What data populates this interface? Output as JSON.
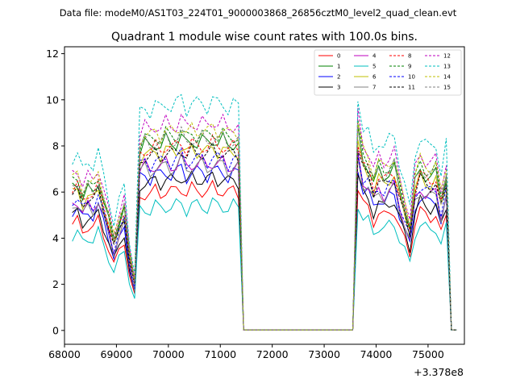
{
  "header": {
    "suptitle": "Data file: modeM0/AS1T03_224T01_9000003868_26856cztM0_level2_quad_clean.evt"
  },
  "chart_data": {
    "type": "line",
    "title": "Quadrant 1 module wise count rates with 100.0s bins.",
    "xlabel": "",
    "ylabel": "",
    "x_offset_label": "+3.378e8",
    "xlim": [
      68000,
      75700
    ],
    "ylim": [
      -0.6,
      12.3
    ],
    "xticks": [
      "68000",
      "69000",
      "70000",
      "71000",
      "72000",
      "73000",
      "74000",
      "75000"
    ],
    "yticks": [
      "0",
      "2",
      "4",
      "6",
      "8",
      "10",
      "12"
    ],
    "legend_placement": "top-right",
    "x": [
      68150,
      68250,
      68350,
      68450,
      68550,
      68650,
      68750,
      68850,
      68950,
      69050,
      69150,
      69250,
      69350,
      69450,
      69550,
      69650,
      69750,
      69850,
      69950,
      70050,
      70150,
      70250,
      70350,
      70450,
      70550,
      70650,
      70750,
      70850,
      70950,
      71050,
      71150,
      71250,
      71350,
      71450,
      71550,
      71650,
      71750,
      71850,
      71950,
      72050,
      72150,
      72250,
      72350,
      72450,
      72550,
      72650,
      72750,
      72850,
      72950,
      73050,
      73150,
      73250,
      73350,
      73450,
      73550,
      73650,
      73750,
      73850,
      73950,
      74050,
      74150,
      74250,
      74350,
      74450,
      74550,
      74650,
      74750,
      74850,
      74950,
      75050,
      75150,
      75250,
      75350,
      75450,
      75550
    ],
    "base_profile": [
      0.73,
      0.75,
      0.68,
      0.72,
      0.7,
      0.76,
      0.66,
      0.56,
      0.45,
      0.55,
      0.62,
      0.38,
      0.24,
      0.92,
      0.95,
      0.93,
      0.96,
      0.94,
      0.97,
      0.95,
      0.96,
      0.99,
      0.94,
      0.97,
      0.96,
      0.97,
      0.95,
      0.98,
      0.96,
      0.97,
      0.94,
      0.96,
      0.95,
      0.0,
      0.0,
      0.0,
      0.0,
      0.0,
      0.0,
      0.0,
      0.0,
      0.0,
      0.0,
      0.0,
      0.0,
      0.0,
      0.0,
      0.0,
      0.0,
      0.0,
      0.0,
      0.0,
      0.0,
      0.0,
      0.0,
      1.0,
      0.86,
      0.84,
      0.75,
      0.81,
      0.78,
      0.81,
      0.83,
      0.71,
      0.62,
      0.52,
      0.75,
      0.82,
      0.79,
      0.78,
      0.8,
      0.66,
      0.79,
      0.0,
      0.0
    ],
    "series": [
      {
        "name": "0",
        "color": "#ff0000",
        "dash": "solid",
        "level": 6.3
      },
      {
        "name": "1",
        "color": "#008000",
        "dash": "solid",
        "level": 8.5
      },
      {
        "name": "2",
        "color": "#0000ff",
        "dash": "solid",
        "level": 7.1
      },
      {
        "name": "3",
        "color": "#000000",
        "dash": "solid",
        "level": 6.8
      },
      {
        "name": "4",
        "color": "#bf00bf",
        "dash": "solid",
        "level": 7.5
      },
      {
        "name": "5",
        "color": "#00bfbf",
        "dash": "solid",
        "level": 5.6
      },
      {
        "name": "6",
        "color": "#bfbf00",
        "dash": "solid",
        "level": 8.1
      },
      {
        "name": "7",
        "color": "#808080",
        "dash": "solid",
        "level": 7.4
      },
      {
        "name": "8",
        "color": "#ff0000",
        "dash": "dashed",
        "level": 8.3
      },
      {
        "name": "9",
        "color": "#008000",
        "dash": "dashed",
        "level": 8.8
      },
      {
        "name": "10",
        "color": "#0000ff",
        "dash": "dashed",
        "level": 7.7
      },
      {
        "name": "11",
        "color": "#000000",
        "dash": "dashed",
        "level": 8.0
      },
      {
        "name": "12",
        "color": "#bf00bf",
        "dash": "dashed",
        "level": 9.3
      },
      {
        "name": "13",
        "color": "#00bfbf",
        "dash": "dashed",
        "level": 10.2
      },
      {
        "name": "14",
        "color": "#bfbf00",
        "dash": "dashed",
        "level": 9.0
      },
      {
        "name": "15",
        "color": "#808080",
        "dash": "dashed",
        "level": 8.6
      }
    ]
  }
}
